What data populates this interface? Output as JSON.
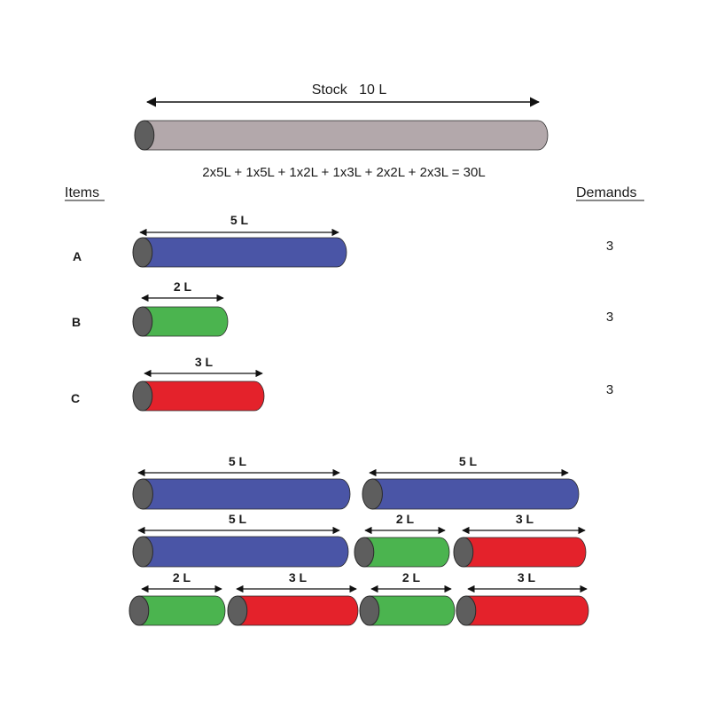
{
  "stock": {
    "label": "Stock   10 L"
  },
  "formula": "2x5L + 1x5L + 1x2L + 1x3L + 2x2L + 2x3L = 30L",
  "headers": {
    "items": "Items",
    "demands": "Demands"
  },
  "colors": {
    "stock": "#b3a8ab",
    "A": "#4a55a6",
    "B": "#4bb44f",
    "C": "#e4222b",
    "cap": "#5e5e5e"
  },
  "items": [
    {
      "id": "A",
      "label": "A",
      "length_label": "5 L",
      "demand": "3"
    },
    {
      "id": "B",
      "label": "B",
      "length_label": "2 L",
      "demand": "3"
    },
    {
      "id": "C",
      "label": "C",
      "length_label": "3 L",
      "demand": "3"
    }
  ],
  "pattern_labels": {
    "r1a": "5 L",
    "r1b": "5 L",
    "r2a": "5 L",
    "r2b": "2 L",
    "r2c": "3 L",
    "r3a": "2 L",
    "r3b": "3 L",
    "r3c": "2 L",
    "r3d": "3 L"
  }
}
